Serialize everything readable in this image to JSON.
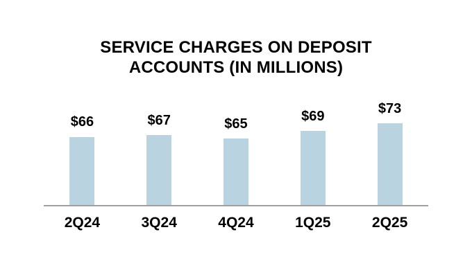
{
  "chart_data": {
    "type": "bar",
    "title": "SERVICE CHARGES ON DEPOSIT ACCOUNTS (IN MILLIONS)",
    "title_lines": [
      "SERVICE CHARGES ON DEPOSIT",
      "ACCOUNTS (IN MILLIONS)"
    ],
    "categories": [
      "2Q24",
      "3Q24",
      "4Q24",
      "1Q25",
      "2Q25"
    ],
    "values": [
      66,
      67,
      65,
      69,
      73
    ],
    "value_labels": [
      "$66",
      "$67",
      "$65",
      "$69",
      "$73"
    ],
    "xlabel": "",
    "ylabel": "",
    "ylim": [
      30,
      87
    ],
    "grid": false,
    "legend": false,
    "bar_color": "#BAD3E0",
    "axis_line_color": "#A0A0A0",
    "label_color": "#000000",
    "background": "#FFFFFF"
  }
}
